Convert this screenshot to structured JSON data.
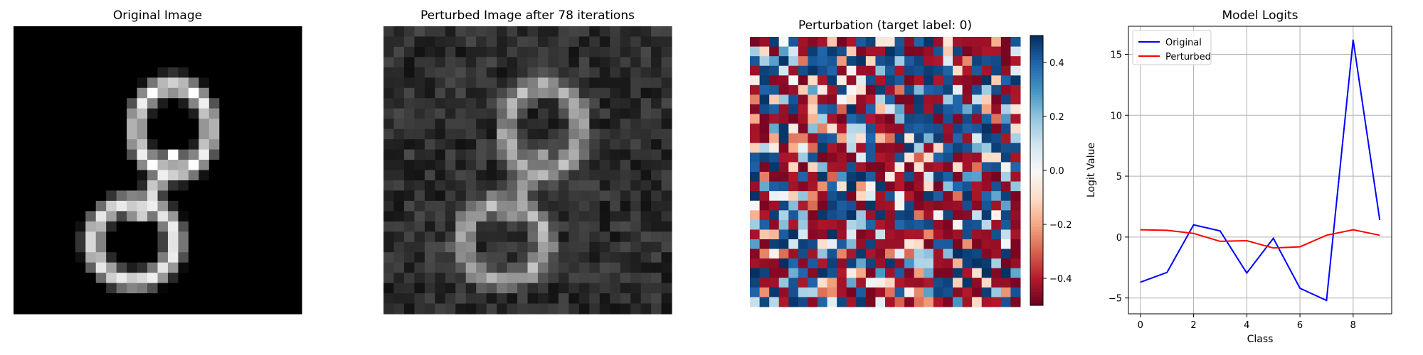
{
  "panels": {
    "original_title": "Original Image",
    "perturbed_title": "Perturbed Image after 78 iterations",
    "perturbation_title": "Perturbation (target label: 0)",
    "logits_title": "Model Logits"
  },
  "colors": {
    "original": "#0000ff",
    "perturbed": "#ff0000",
    "grid": "#b0b0b0",
    "cmap": "RdBu"
  },
  "chart_data": [
    {
      "type": "heatmap",
      "title": "Original Image",
      "colormap": "gray",
      "description_grid": "28x28 grayscale handwritten digit",
      "xlabel": "",
      "ylabel": ""
    },
    {
      "type": "heatmap",
      "title": "Perturbed Image after 78 iterations",
      "colormap": "gray",
      "description_grid": "28x28 grayscale noisy digit",
      "xlabel": "",
      "ylabel": ""
    },
    {
      "type": "heatmap",
      "title": "Perturbation (target label: 0)",
      "colormap": "RdBu",
      "colorbar_ticks": [
        "−0.4",
        "−0.2",
        "0.0",
        "0.2",
        "0.4"
      ],
      "colorbar_range": [
        -0.5,
        0.5
      ],
      "xlabel": "",
      "ylabel": ""
    },
    {
      "type": "line",
      "title": "Model Logits",
      "xlabel": "Class",
      "ylabel": "Logit Value",
      "x": [
        0,
        1,
        2,
        3,
        4,
        5,
        6,
        7,
        8,
        9
      ],
      "xlim": [
        -0.45,
        9.45
      ],
      "ylim": [
        -6.3,
        17.3
      ],
      "xticks": [
        "0",
        "2",
        "4",
        "6",
        "8"
      ],
      "yticks": [
        "−5",
        "0",
        "5",
        "10",
        "15"
      ],
      "grid": true,
      "legend": "top-left",
      "series": [
        {
          "name": "Original",
          "color": "#0000ff",
          "values": [
            -3.7,
            -2.9,
            1.0,
            0.5,
            -2.95,
            -0.1,
            -4.2,
            -5.2,
            16.2,
            1.4
          ]
        },
        {
          "name": "Perturbed",
          "color": "#ff0000",
          "values": [
            0.6,
            0.55,
            0.3,
            -0.35,
            -0.3,
            -0.9,
            -0.8,
            0.15,
            0.6,
            0.15
          ]
        }
      ]
    }
  ]
}
